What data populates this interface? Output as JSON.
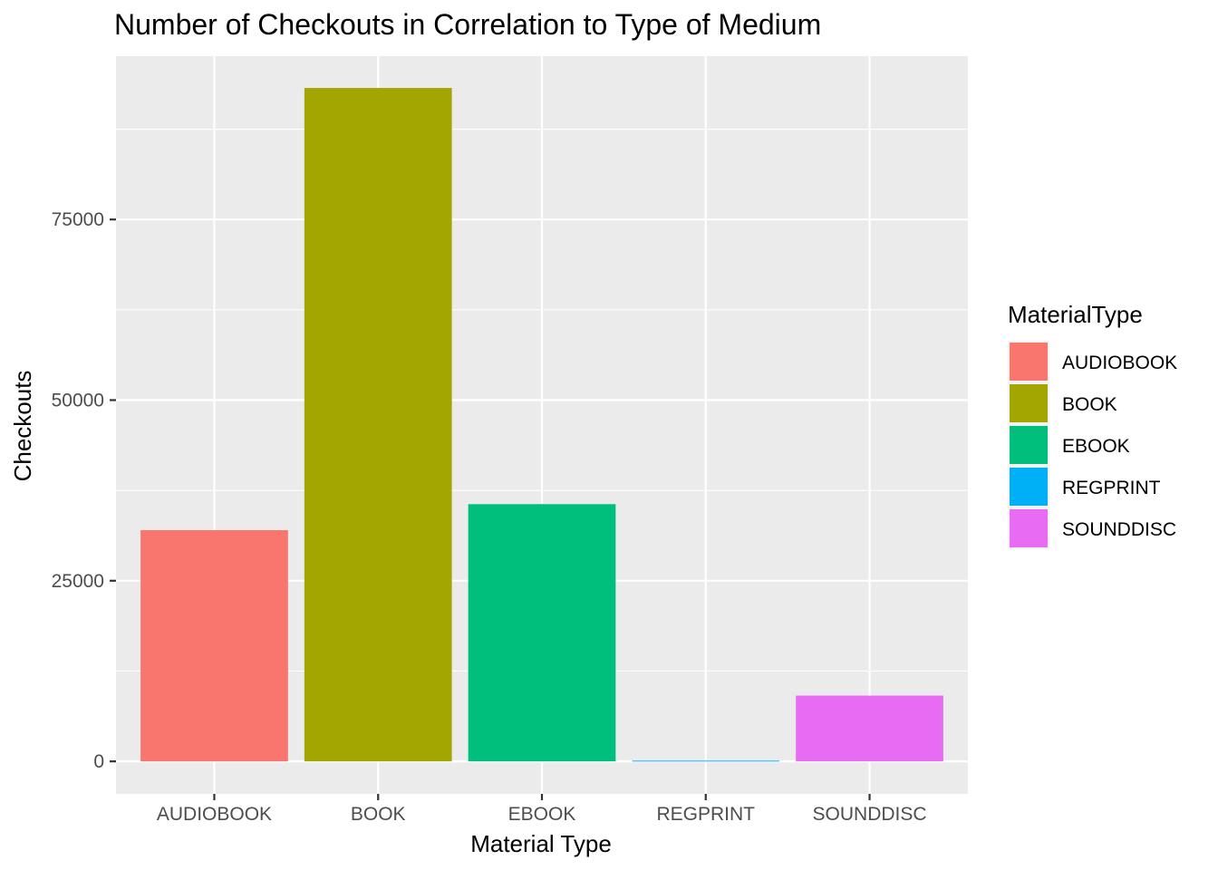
{
  "chart_data": {
    "type": "bar",
    "title": "Number of Checkouts in Correlation to Type of Medium",
    "xlabel": "Material Type",
    "ylabel": "Checkouts",
    "categories": [
      "AUDIOBOOK",
      "BOOK",
      "EBOOK",
      "REGPRINT",
      "SOUNDDISC"
    ],
    "values": [
      32000,
      93200,
      35600,
      100,
      9100
    ],
    "colors": [
      "#F8766D",
      "#A3A500",
      "#00BF7D",
      "#00B0F6",
      "#E76BF3"
    ],
    "ylim": [
      -4500,
      97600
    ],
    "yticks": [
      0,
      25000,
      50000,
      75000
    ],
    "ytick_labels": [
      "0",
      "25000",
      "50000",
      "75000"
    ],
    "grid": true,
    "legend": {
      "title": "MaterialType",
      "position": "right",
      "entries": [
        "AUDIOBOOK",
        "BOOK",
        "EBOOK",
        "REGPRINT",
        "SOUNDDISC"
      ]
    }
  }
}
